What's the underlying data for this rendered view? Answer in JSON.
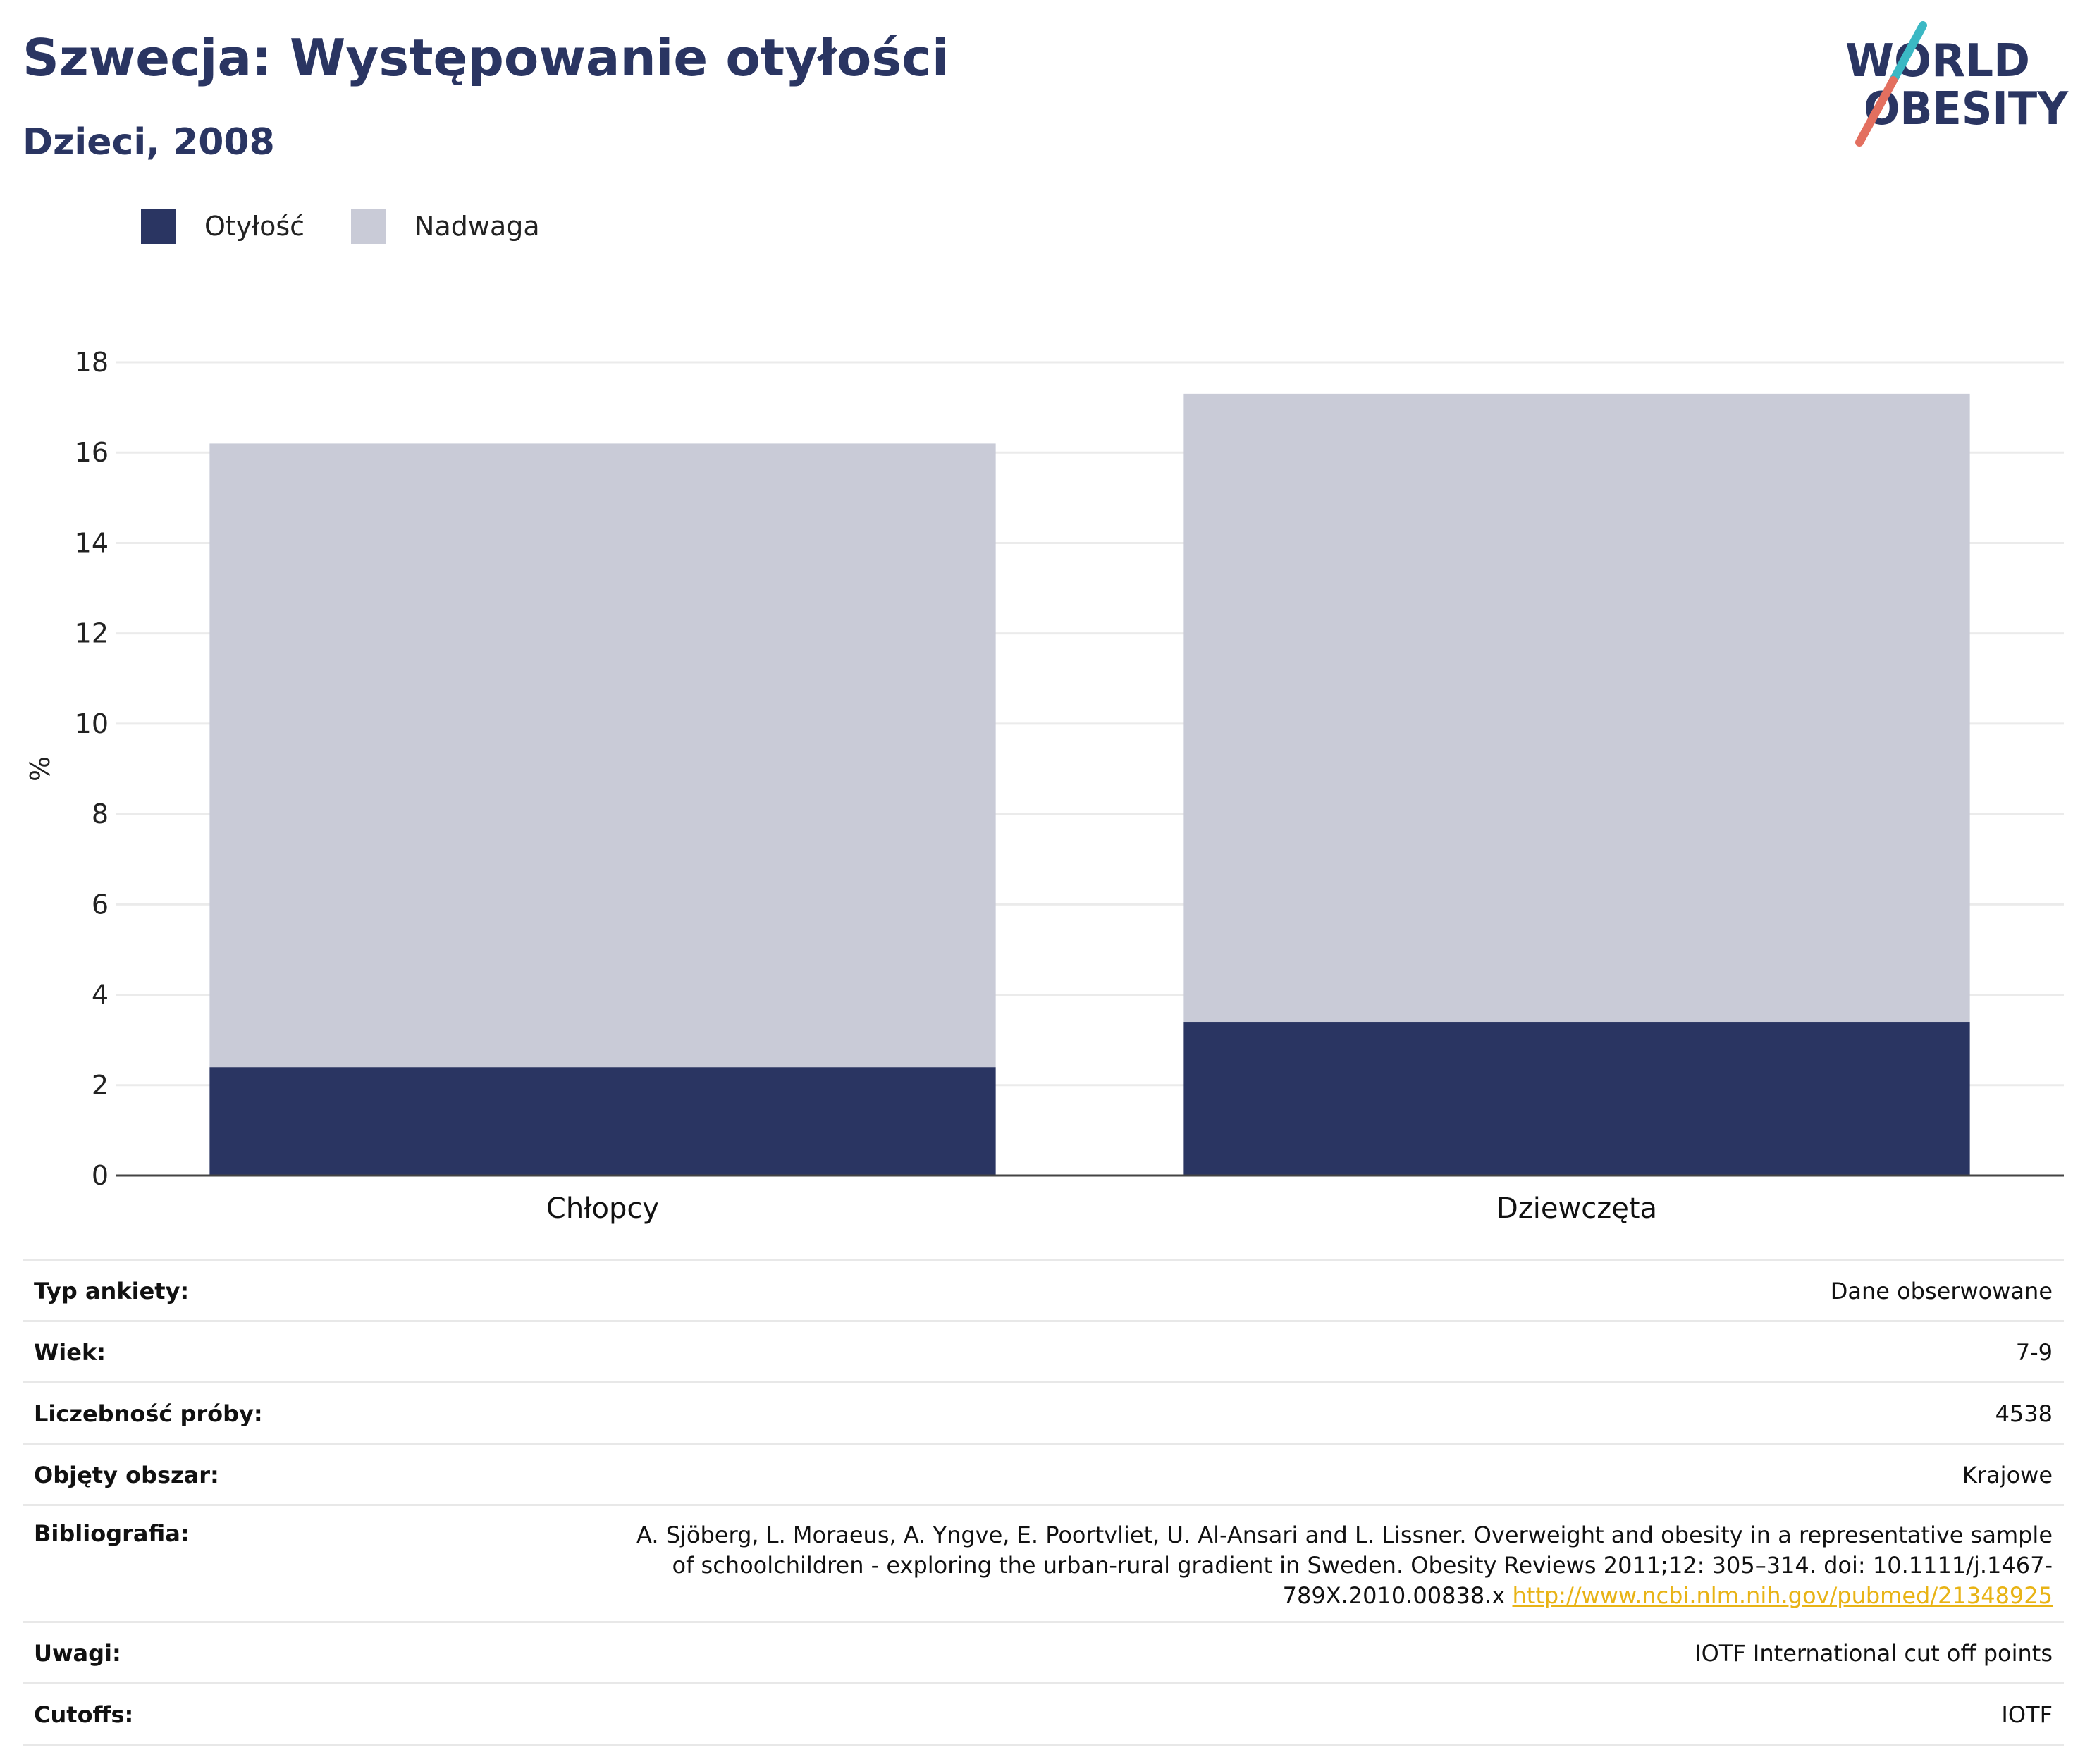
{
  "header": {
    "title": "Szwecja: Występowanie otyłości",
    "subtitle": "Dzieci, 2008",
    "logo_line1": "WORLD",
    "logo_line2": "OBESITY"
  },
  "colors": {
    "brand": "#2a3562",
    "obesity": "#2a3562",
    "overweight": "#c9cbd7",
    "logo_teal": "#3bb8c4",
    "logo_coral": "#e36f5f",
    "link": "#e8b315"
  },
  "chart_data": {
    "type": "bar",
    "stacked": true,
    "categories": [
      "Chłopcy",
      "Dziewczęta"
    ],
    "series": [
      {
        "name": "Otyłość",
        "values": [
          2.4,
          3.4
        ]
      },
      {
        "name": "Nadwaga",
        "values": [
          13.8,
          13.9
        ]
      }
    ],
    "ylabel": "%",
    "ylim": [
      0,
      18
    ],
    "yticks": [
      0,
      2,
      4,
      6,
      8,
      10,
      12,
      14,
      16,
      18
    ],
    "grid": true,
    "legend": "top-left"
  },
  "info": {
    "survey_type_label": "Typ ankiety:",
    "survey_type_value": "Dane obserwowane",
    "age_label": "Wiek:",
    "age_value": "7-9",
    "sample_label": "Liczebność próby:",
    "sample_value": "4538",
    "area_label": "Objęty obszar:",
    "area_value": "Krajowe",
    "bib_label": "Bibliografia:",
    "bib_text": "A. Sjöberg, L. Moraeus, A. Yngve, E. Poortvliet, U. Al-Ansari and L. Lissner. Overweight and obesity in a representative sample of schoolchildren - exploring the urban-rural gradient in Sweden. Obesity Reviews 2011;12: 305–314. doi: 10.1111/j.1467-789X.2010.00838.x",
    "bib_link": "http://www.ncbi.nlm.nih.gov/pubmed/21348925",
    "notes_label": "Uwagi:",
    "notes_value": "IOTF International cut off points",
    "cutoffs_label": "Cutoffs:",
    "cutoffs_value": "IOTF"
  }
}
